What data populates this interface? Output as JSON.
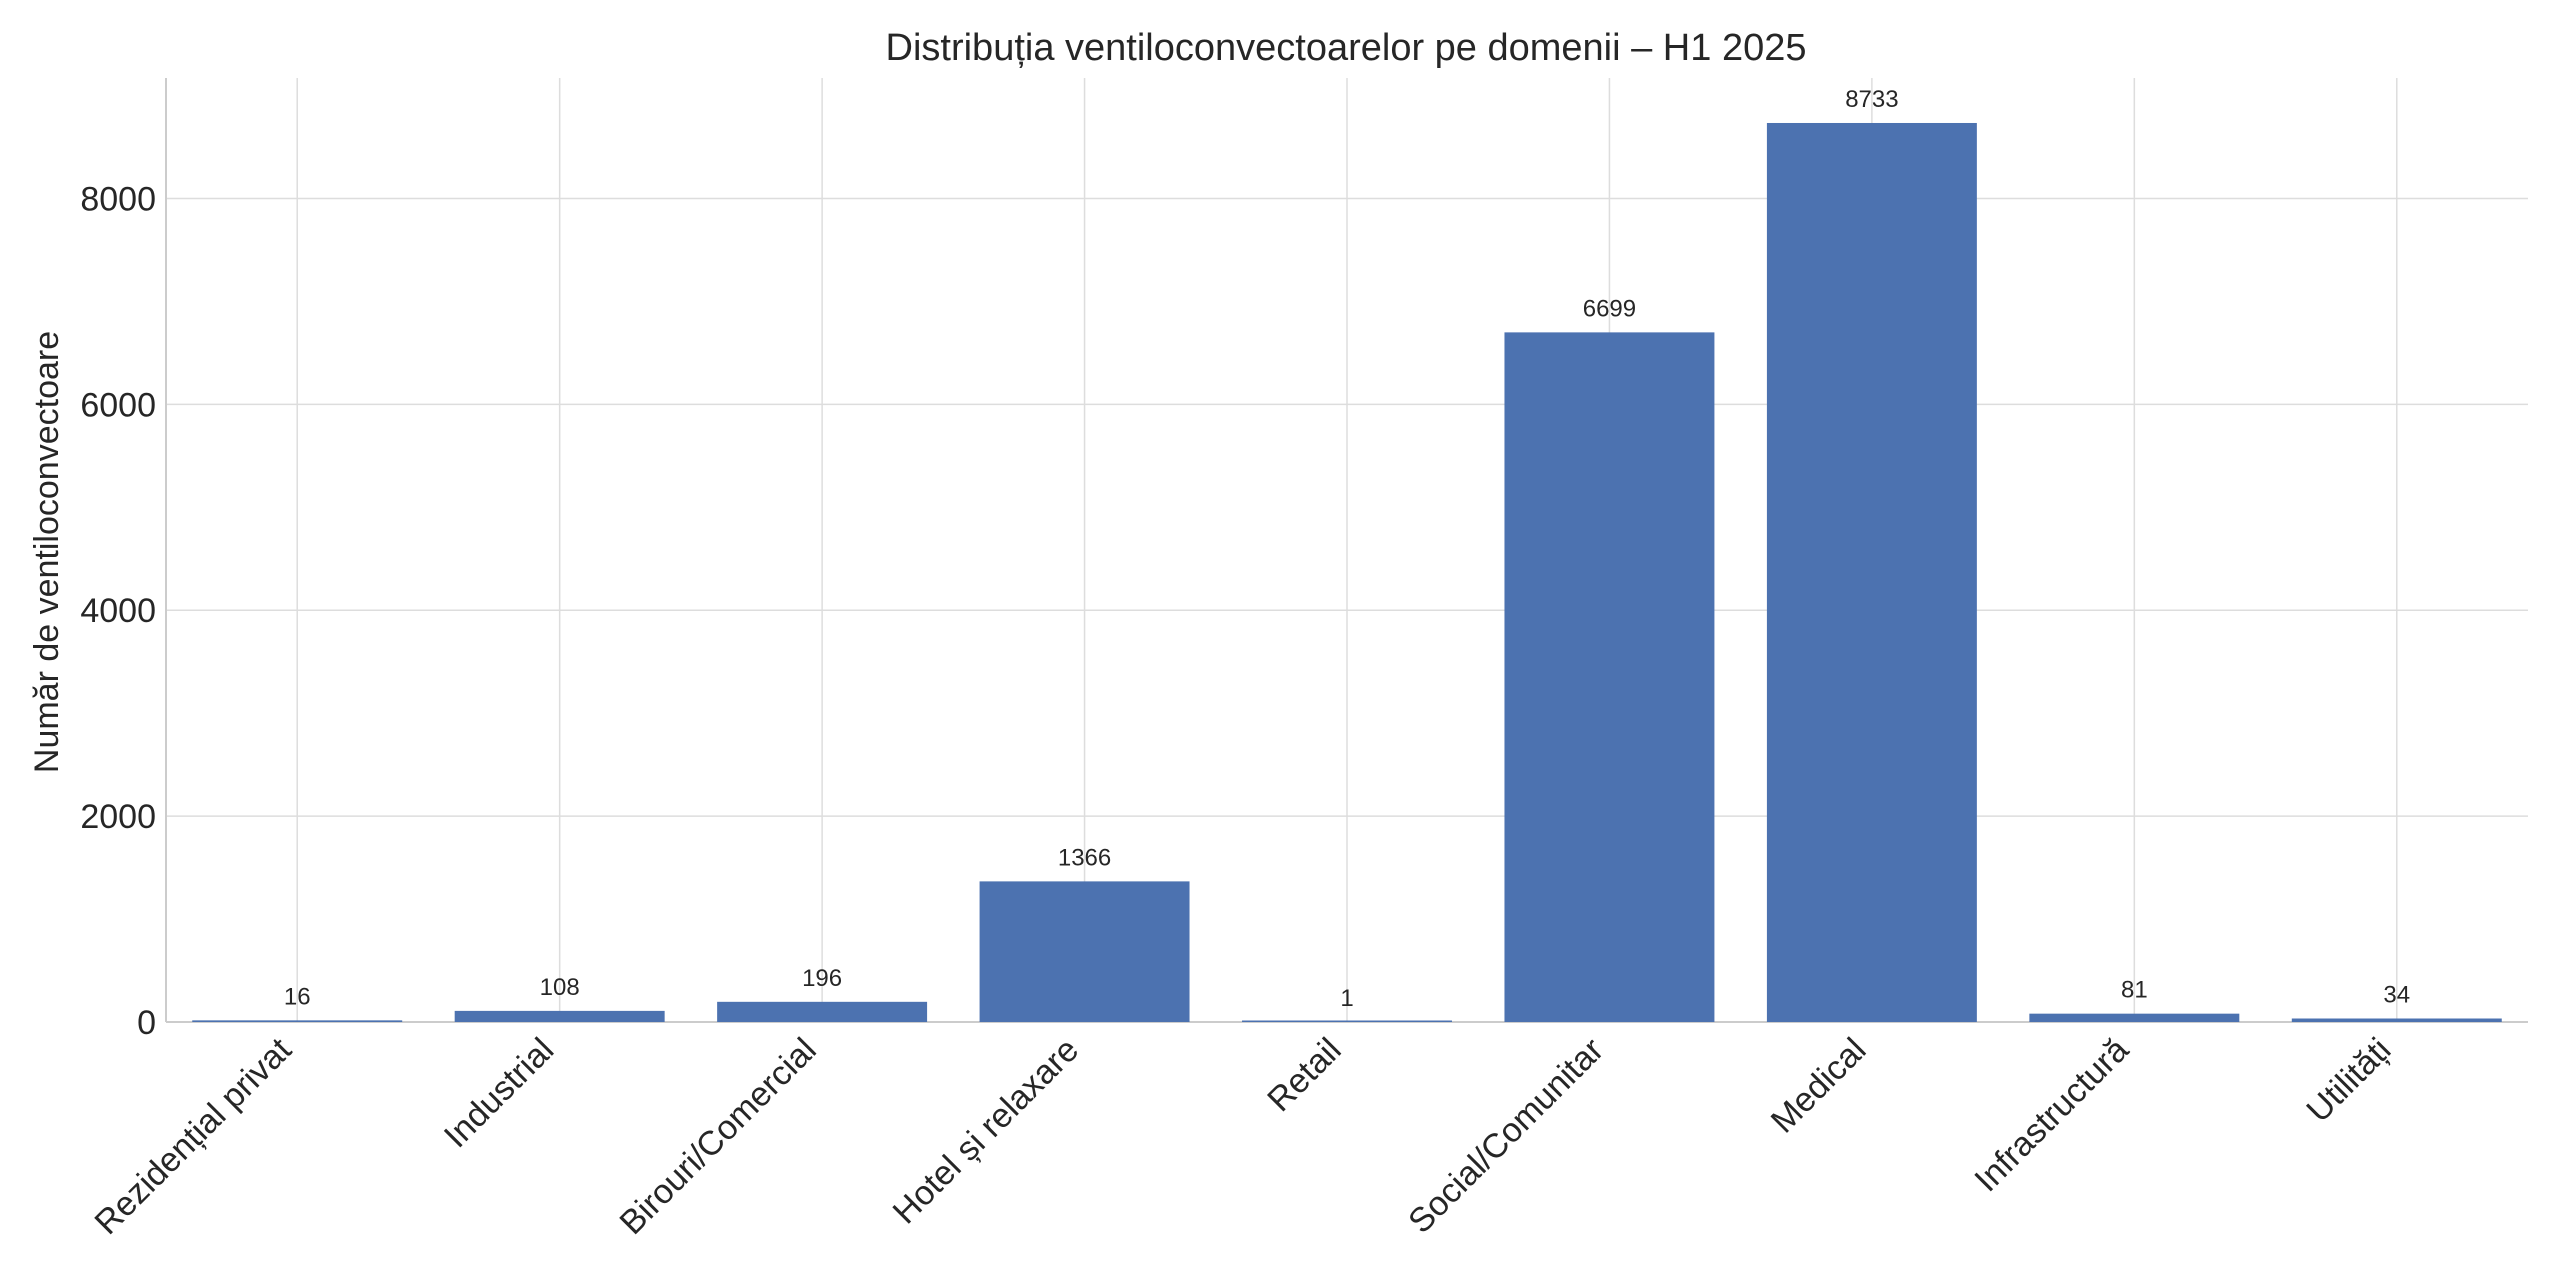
{
  "chart_data": {
    "type": "bar",
    "title": "Distribuția ventiloconvectoarelor pe domenii – H1 2025",
    "xlabel": "",
    "ylabel": "Număr de ventiloconvectoare",
    "categories": [
      "Rezidențial privat",
      "Industrial",
      "Birouri/Comercial",
      "Hotel și relaxare",
      "Retail",
      "Social/Comunitar",
      "Medical",
      "Infrastructură",
      "Utilități"
    ],
    "values": [
      16,
      108,
      196,
      1366,
      1,
      6699,
      8733,
      81,
      34
    ],
    "data_labels": [
      "16",
      "108",
      "196",
      "1366",
      "1",
      "6699",
      "8733",
      "81",
      "34"
    ],
    "ylim": [
      0,
      9170
    ],
    "yticks": [
      0,
      2000,
      4000,
      6000,
      8000
    ],
    "ytick_labels": [
      "0",
      "2000",
      "4000",
      "6000",
      "8000"
    ],
    "grid": true,
    "legend": "none",
    "colors": {
      "bar": "#4c72b0",
      "grid": "#dddddd",
      "axis": "#cccccc",
      "text": "#262626",
      "background": "#ffffff"
    }
  }
}
